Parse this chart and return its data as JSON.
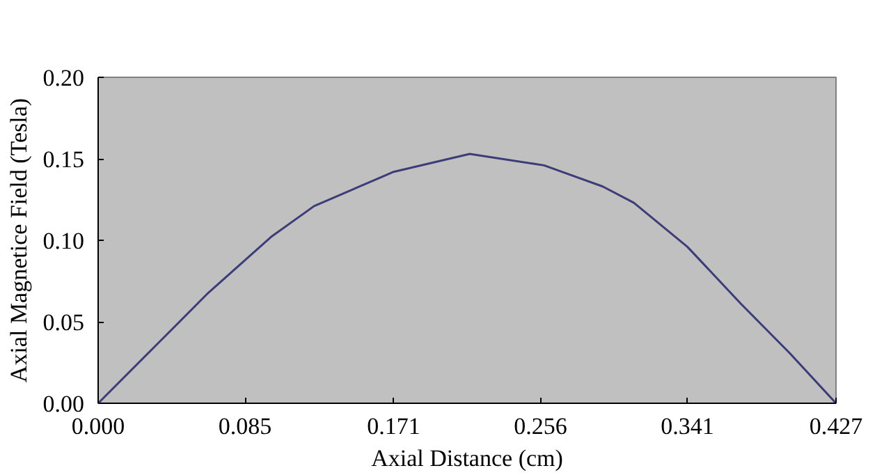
{
  "chart_data": {
    "type": "line",
    "xlabel": "Axial Distance (cm)",
    "ylabel": "Axial Magnetice Field (Tesla)",
    "x": [
      0,
      0.032,
      0.063,
      0.1,
      0.125,
      0.171,
      0.215,
      0.258,
      0.292,
      0.31,
      0.341,
      0.372,
      0.4,
      0.427
    ],
    "series": [
      {
        "color": "#3c3c78",
        "values": [
          0,
          0.034,
          0.067,
          0.102,
          0.121,
          0.142,
          0.153,
          0.146,
          0.133,
          0.123,
          0.096,
          0.061,
          0.031,
          0
        ]
      }
    ],
    "xlim": [
      0,
      0.427
    ],
    "ylim": [
      0,
      0.2
    ],
    "xticks": [
      {
        "value": 0,
        "label": "0.000"
      },
      0.085,
      0.171,
      0.256,
      0.341,
      0.427
    ],
    "yticks": [
      {
        "value": 0,
        "label": "0.00"
      },
      0.05,
      {
        "value": 0.1,
        "label": "0.10"
      },
      0.15,
      {
        "value": 0.2,
        "label": "0.20"
      }
    ],
    "grid": false,
    "marker": "none",
    "line_style": "solid"
  }
}
